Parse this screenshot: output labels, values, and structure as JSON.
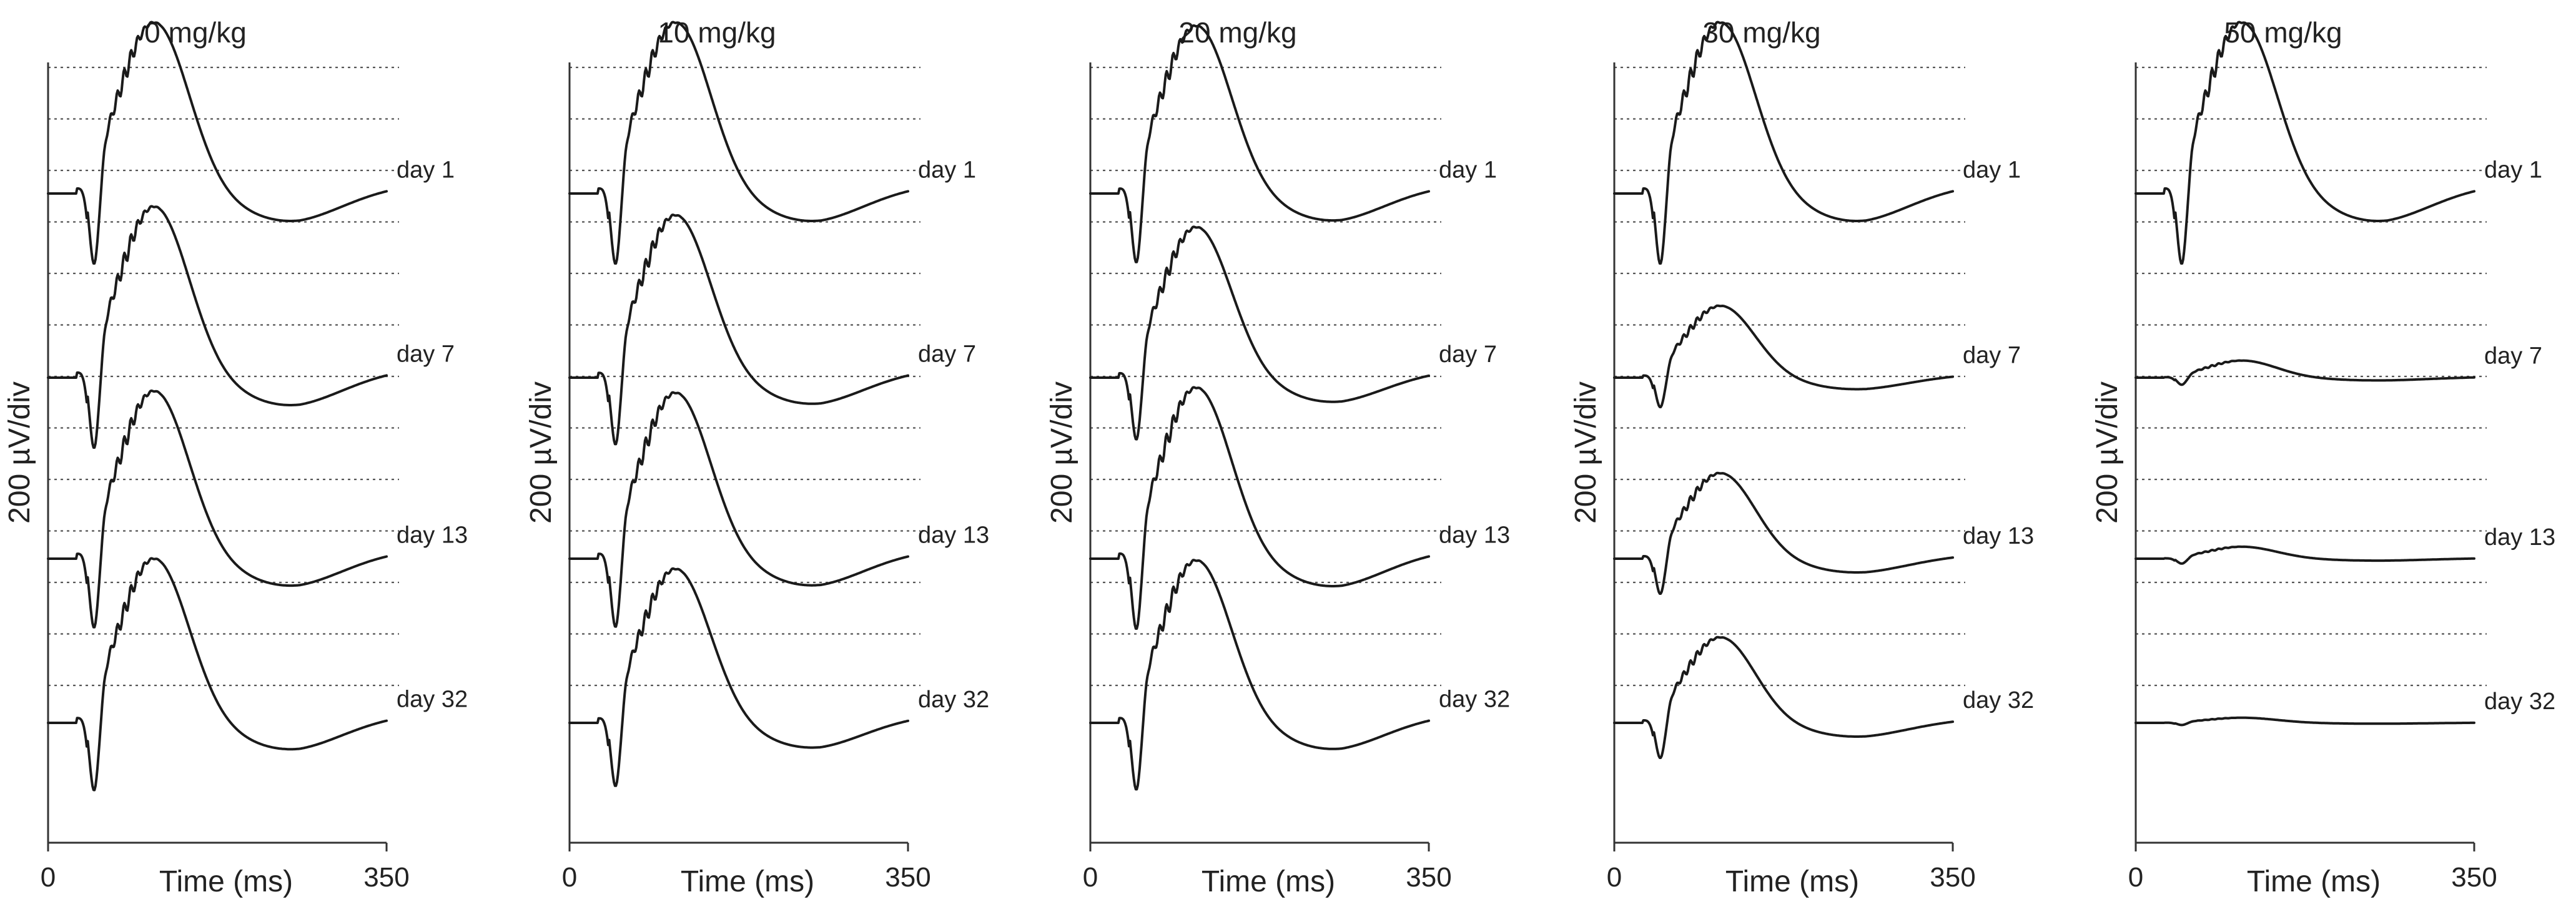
{
  "chart_data": [
    {
      "type": "line",
      "title": "0 mg/kg",
      "xlabel": "Time (ms)",
      "ylabel": "200 µV/div",
      "xlim": [
        0,
        350
      ],
      "x_ticks": [
        "0",
        "350"
      ],
      "grid": "horizontal dotted",
      "series": [
        {
          "name": "day 1",
          "scale": 1.0,
          "offset": 0,
          "label_offset": 0
        },
        {
          "name": "day 7",
          "scale": 1.0,
          "offset": 0,
          "label_offset": 0
        },
        {
          "name": "day 13",
          "scale": 0.98,
          "offset": 0,
          "label_offset": 0
        },
        {
          "name": "day 32",
          "scale": 0.96,
          "offset": 0,
          "label_offset": 0
        }
      ]
    },
    {
      "type": "line",
      "title": "10 mg/kg",
      "xlabel": "Time (ms)",
      "ylabel": "200 µV/div",
      "xlim": [
        0,
        350
      ],
      "x_ticks": [
        "0",
        "350"
      ],
      "grid": "horizontal dotted",
      "series": [
        {
          "name": "day 1",
          "scale": 1.0,
          "offset": 0,
          "label_offset": 0
        },
        {
          "name": "day 7",
          "scale": 0.95,
          "offset": 0,
          "label_offset": 0
        },
        {
          "name": "day 13",
          "scale": 0.97,
          "offset": 0,
          "label_offset": 0
        },
        {
          "name": "day 32",
          "scale": 0.9,
          "offset": 0,
          "label_offset": 0
        }
      ]
    },
    {
      "type": "line",
      "title": "20 mg/kg",
      "xlabel": "Time (ms)",
      "ylabel": "200 µV/div",
      "xlim": [
        0,
        350
      ],
      "x_ticks": [
        "0",
        "350"
      ],
      "grid": "horizontal dotted",
      "series": [
        {
          "name": "day 1",
          "scale": 0.98,
          "offset": 0,
          "label_offset": 0
        },
        {
          "name": "day 7",
          "scale": 0.88,
          "offset": 0,
          "label_offset": 0
        },
        {
          "name": "day 13",
          "scale": 1.0,
          "offset": 0,
          "label_offset": 0
        },
        {
          "name": "day 32",
          "scale": 0.95,
          "offset": 0,
          "label_offset": 0
        }
      ]
    },
    {
      "type": "line",
      "title": "30 mg/kg",
      "xlabel": "Time (ms)",
      "ylabel": "200 µV/div",
      "xlim": [
        0,
        350
      ],
      "x_ticks": [
        "0",
        "350"
      ],
      "grid": "horizontal dotted",
      "series": [
        {
          "name": "day 1",
          "scale": 1.0,
          "offset": 0,
          "label_offset": 0
        },
        {
          "name": "day 7",
          "scale": 0.42,
          "offset": 0,
          "label_offset": 0
        },
        {
          "name": "day 13",
          "scale": 0.5,
          "offset": 0,
          "label_offset": 0
        },
        {
          "name": "day 32",
          "scale": 0.5,
          "offset": 0,
          "label_offset": 0
        }
      ]
    },
    {
      "type": "line",
      "title": "50 mg/kg",
      "xlabel": "Time (ms)",
      "ylabel": "200 µV/div",
      "xlim": [
        0,
        350
      ],
      "x_ticks": [
        "0",
        "350"
      ],
      "grid": "horizontal dotted",
      "series": [
        {
          "name": "day 1",
          "scale": 1.0,
          "offset": 0,
          "label_offset": 0
        },
        {
          "name": "day 7",
          "scale": 0.1,
          "offset": 0,
          "label_offset": 0
        },
        {
          "name": "day 13",
          "scale": 0.07,
          "offset": 0,
          "label_offset": 0
        },
        {
          "name": "day 32",
          "scale": 0.03,
          "offset": 0,
          "label_offset": 0
        }
      ]
    }
  ]
}
